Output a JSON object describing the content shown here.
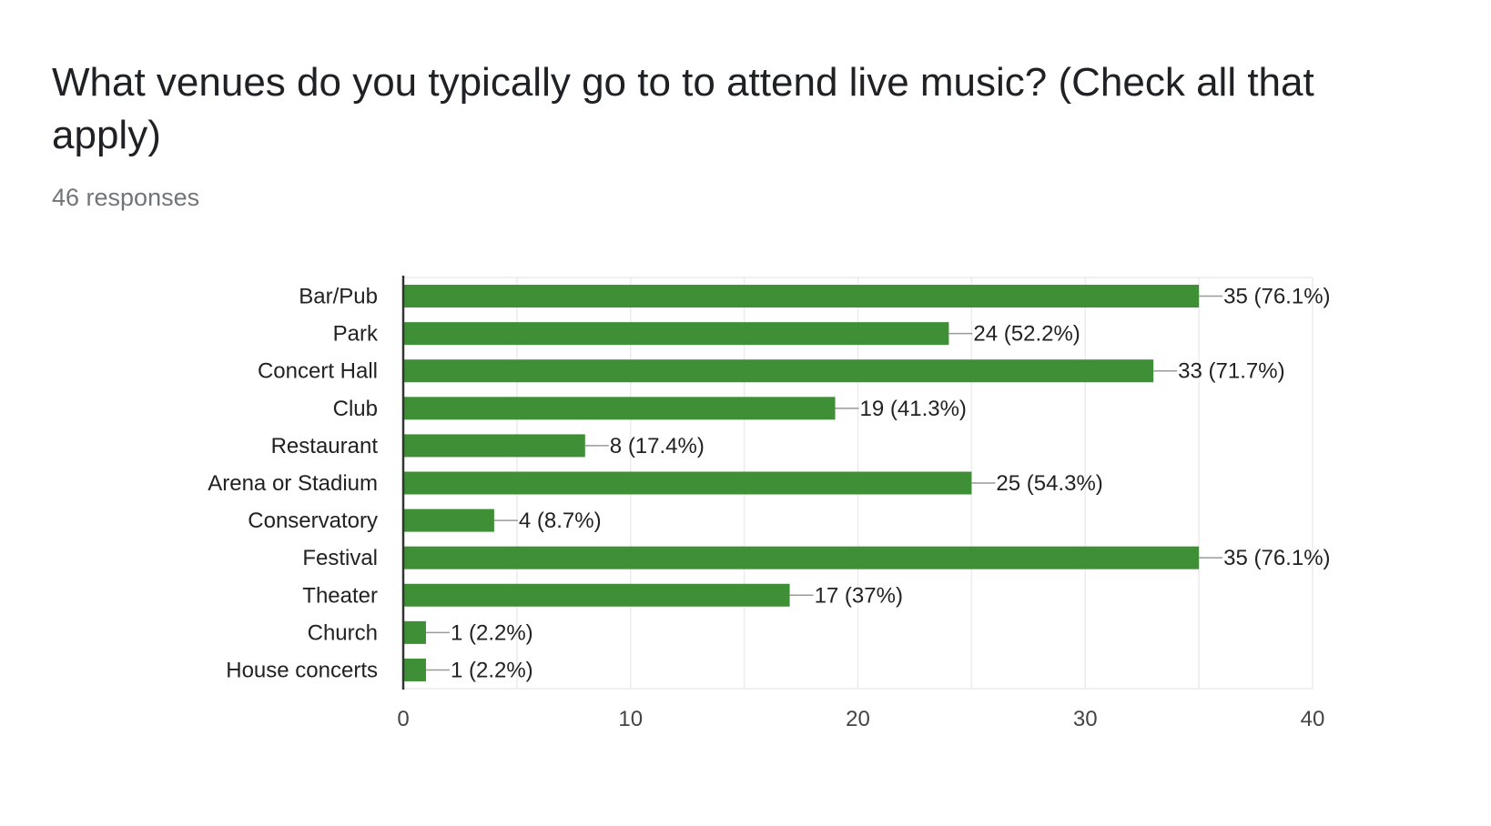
{
  "header": {
    "title": "What venues do you typically go to to attend live music? (Check all that apply)",
    "responses": "46 responses"
  },
  "colors": {
    "bar": "#3f8f36",
    "grid": "#ebebeb",
    "axis": "#333333",
    "leader": "#999999"
  },
  "chart_data": {
    "type": "bar",
    "orientation": "horizontal",
    "categories": [
      "Bar/Pub",
      "Park",
      "Concert Hall",
      "Club",
      "Restaurant",
      "Arena or Stadium",
      "Conservatory",
      "Festival",
      "Theater",
      "Church",
      "House concerts"
    ],
    "values": [
      35,
      24,
      33,
      19,
      8,
      25,
      4,
      35,
      17,
      1,
      1
    ],
    "data_labels": [
      "35 (76.1%)",
      "24 (52.2%)",
      "33 (71.7%)",
      "19 (41.3%)",
      "8 (17.4%)",
      "25 (54.3%)",
      "4 (8.7%)",
      "35 (76.1%)",
      "17 (37%)",
      "1 (2.2%)",
      "1 (2.2%)"
    ],
    "xlim": [
      0,
      40
    ],
    "xticks": [
      0,
      10,
      20,
      30,
      40
    ],
    "minor_grid_step": 5,
    "grid": true,
    "legend": "none"
  }
}
